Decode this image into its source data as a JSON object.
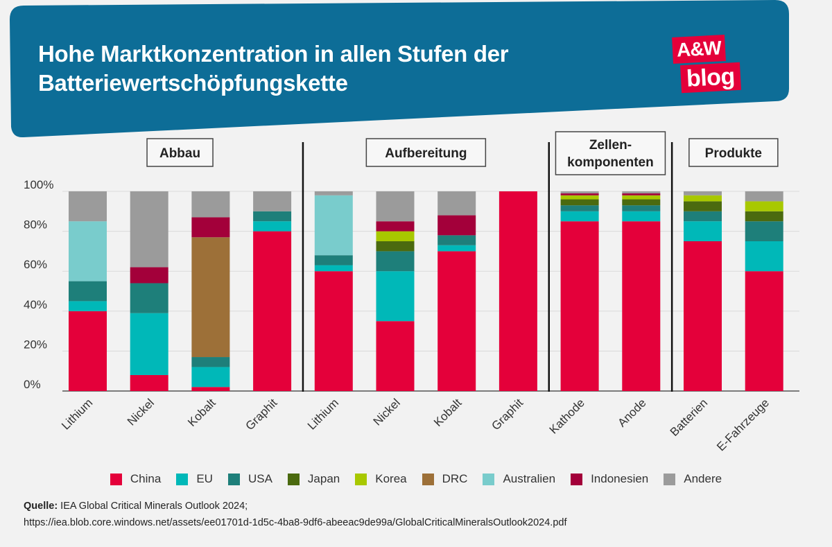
{
  "header": {
    "title_line1": "Hohe Marktkonzentration in allen Stufen der",
    "title_line2": "Batteriewertschöpfungskette",
    "logo_line1": "A&W",
    "logo_line2": "blog"
  },
  "colors": {
    "banner": "#0d6d97",
    "background": "#f2f2f2",
    "logo": "#e4003a"
  },
  "chart_data": {
    "type": "bar",
    "stacked": true,
    "ylim": [
      0,
      100
    ],
    "yticks": [
      "0%",
      "20%",
      "40%",
      "60%",
      "80%",
      "100%"
    ],
    "stages": [
      {
        "label": "Abbau",
        "categories": [
          0,
          1,
          2,
          3
        ]
      },
      {
        "label": "Aufbereitung",
        "categories": [
          4,
          5,
          6,
          7
        ]
      },
      {
        "label": "Zellen-\nkomponenten",
        "label_lines": [
          "Zellen-",
          "komponenten"
        ],
        "categories": [
          8,
          9
        ]
      },
      {
        "label": "Produkte",
        "categories": [
          10,
          11
        ]
      }
    ],
    "categories": [
      "Lithium",
      "Nickel",
      "Kobalt",
      "Graphit",
      "Lithium",
      "Nickel",
      "Kobalt",
      "Graphit",
      "Kathode",
      "Anode",
      "Batterien",
      "E-Fahrzeuge"
    ],
    "series": [
      {
        "name": "China",
        "color": "#e4003a",
        "values": [
          40,
          8,
          2,
          80,
          60,
          35,
          70,
          100,
          85,
          85,
          75,
          60
        ]
      },
      {
        "name": "EU",
        "color": "#00b8b8",
        "values": [
          5,
          31,
          10,
          5,
          3,
          25,
          3,
          0,
          5,
          5,
          10,
          15
        ]
      },
      {
        "name": "USA",
        "color": "#1e7f7a",
        "values": [
          10,
          15,
          5,
          5,
          5,
          10,
          5,
          0,
          3,
          3,
          5,
          10
        ]
      },
      {
        "name": "Japan",
        "color": "#4b6a0f",
        "values": [
          0,
          0,
          0,
          0,
          0,
          5,
          0,
          0,
          3,
          3,
          5,
          5
        ]
      },
      {
        "name": "Korea",
        "color": "#a8c800",
        "values": [
          0,
          0,
          0,
          0,
          0,
          5,
          0,
          0,
          2,
          2,
          3,
          5
        ]
      },
      {
        "name": "DRC",
        "color": "#9d7038",
        "values": [
          0,
          0,
          60,
          0,
          0,
          0,
          0,
          0,
          0,
          0,
          0,
          0
        ]
      },
      {
        "name": "Australien",
        "color": "#79cccc",
        "values": [
          30,
          0,
          0,
          0,
          30,
          0,
          0,
          0,
          0,
          0,
          0,
          0
        ]
      },
      {
        "name": "Indonesien",
        "color": "#a3003a",
        "values": [
          0,
          8,
          10,
          0,
          0,
          5,
          10,
          0,
          1,
          1,
          0,
          0
        ]
      },
      {
        "name": "Andere",
        "color": "#9b9b9b",
        "values": [
          15,
          38,
          13,
          10,
          2,
          15,
          12,
          0,
          1,
          1,
          2,
          5
        ]
      }
    ]
  },
  "source": {
    "label": "Quelle:",
    "text": " IEA Global Critical Minerals Outlook 2024;",
    "url": "https://iea.blob.core.windows.net/assets/ee01701d-1d5c-4ba8-9df6-abeeac9de99a/GlobalCriticalMineralsOutlook2024.pdf"
  }
}
